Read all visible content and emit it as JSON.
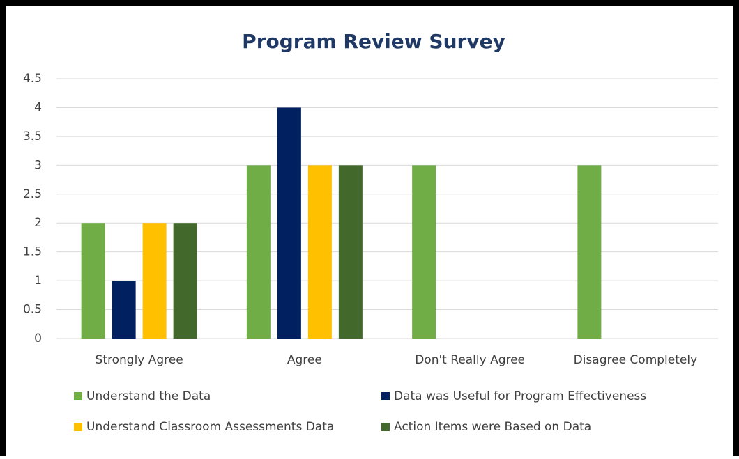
{
  "chart_data": {
    "type": "bar",
    "title": "Program Review Survey",
    "categories": [
      "Strongly Agree",
      "Agree",
      "Don't Really Agree",
      "Disagree Completely"
    ],
    "series": [
      {
        "name": "Understand the Data",
        "color": "#70ad47",
        "values": [
          2,
          3,
          3,
          3
        ]
      },
      {
        "name": "Data was Useful for Program Effectiveness",
        "color": "#002060",
        "values": [
          1,
          4,
          0,
          0
        ]
      },
      {
        "name": "Understand Classroom Assessments Data",
        "color": "#ffc000",
        "values": [
          2,
          3,
          0,
          0
        ]
      },
      {
        "name": "Action Items were Based on Data",
        "color": "#43682b",
        "values": [
          2,
          3,
          0,
          0
        ]
      }
    ],
    "ylim": [
      0,
      4.5
    ],
    "yticks": [
      0,
      0.5,
      1,
      1.5,
      2,
      2.5,
      3,
      3.5,
      4,
      4.5
    ],
    "grid": true,
    "legend": "bottom"
  }
}
